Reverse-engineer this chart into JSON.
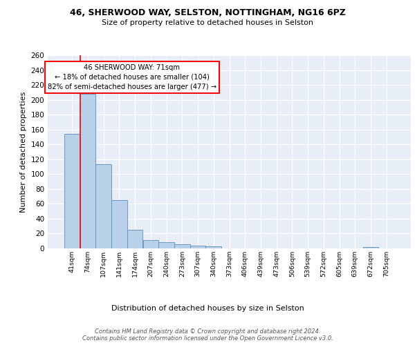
{
  "title1": "46, SHERWOOD WAY, SELSTON, NOTTINGHAM, NG16 6PZ",
  "title2": "Size of property relative to detached houses in Selston",
  "xlabel": "Distribution of detached houses by size in Selston",
  "ylabel": "Number of detached properties",
  "bar_color": "#b8d0e8",
  "bar_edge_color": "#5a8fbd",
  "bg_color": "#e8eef8",
  "grid_color": "#ffffff",
  "categories": [
    "41sqm",
    "74sqm",
    "107sqm",
    "141sqm",
    "174sqm",
    "207sqm",
    "240sqm",
    "273sqm",
    "307sqm",
    "340sqm",
    "373sqm",
    "406sqm",
    "439sqm",
    "473sqm",
    "506sqm",
    "539sqm",
    "572sqm",
    "605sqm",
    "639sqm",
    "672sqm",
    "705sqm"
  ],
  "values": [
    154,
    208,
    113,
    65,
    25,
    11,
    8,
    6,
    4,
    3,
    0,
    0,
    0,
    0,
    0,
    0,
    0,
    0,
    0,
    2,
    0
  ],
  "annotation_text": "46 SHERWOOD WAY: 71sqm\n← 18% of detached houses are smaller (104)\n82% of semi-detached houses are larger (477) →",
  "footer_text": "Contains HM Land Registry data © Crown copyright and database right 2024.\nContains public sector information licensed under the Open Government Licence v3.0.",
  "ylim": [
    0,
    260
  ],
  "yticks": [
    0,
    20,
    40,
    60,
    80,
    100,
    120,
    140,
    160,
    180,
    200,
    220,
    240,
    260
  ]
}
